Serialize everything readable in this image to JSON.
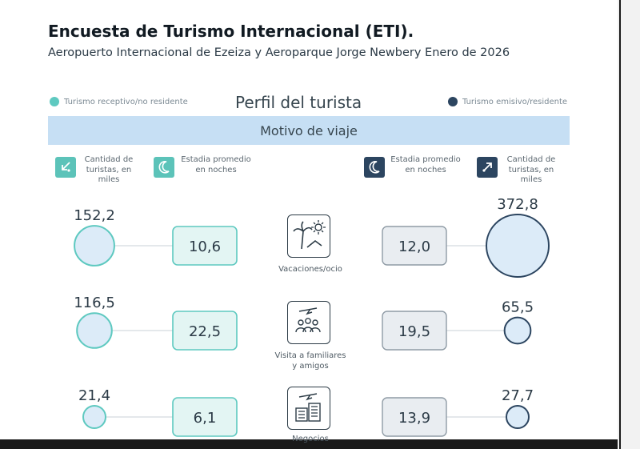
{
  "header": {
    "title": "Encuesta de Turismo Internacional (ETI).",
    "subtitle": "Aeropuerto Internacional de Ezeiza y Aeroparque Jorge Newbery Enero de 2026"
  },
  "legend": {
    "left": "Turismo receptivo/no residente",
    "right": "Turismo emisivo/residente"
  },
  "section_title": "Perfil del turista",
  "band_title": "Motivo de viaje",
  "column_headers": {
    "left_count": "Cantidad de turistas, en miles",
    "left_stay": "Estadia promedio en noches",
    "right_stay": "Estadia promedio en noches",
    "right_count": "Cantidad de turistas, en miles"
  },
  "colors": {
    "receptive": "#5ec9c0",
    "receptive_fill": "#dcebf8",
    "emissive": "#2c4560",
    "emissive_fill": "#dcebf8",
    "band": "#c6dff4"
  },
  "chart_data": {
    "type": "table",
    "categories": [
      "Vacaciones/ocio",
      "Visita a familiares y amigos",
      "Negocios"
    ],
    "category_labels": [
      [
        "Vacaciones/ocio"
      ],
      [
        "Visita a familiares",
        "y amigos"
      ],
      [
        "Negocios"
      ]
    ],
    "icons": [
      "palm-beach-icon",
      "family-plane-icon",
      "business-buildings-icon"
    ],
    "series": [
      {
        "name": "Turismo receptivo/no residente",
        "metric": "count_thousands",
        "values": [
          152.2,
          116.5,
          21.4
        ],
        "labels": [
          "152,2",
          "116,5",
          "21,4"
        ]
      },
      {
        "name": "Turismo receptivo/no residente",
        "metric": "avg_stay_nights",
        "values": [
          10.6,
          22.5,
          6.1
        ],
        "labels": [
          "10,6",
          "22,5",
          "6,1"
        ]
      },
      {
        "name": "Turismo emisivo/residente",
        "metric": "avg_stay_nights",
        "values": [
          12.0,
          19.5,
          13.9
        ],
        "labels": [
          "12,0",
          "19,5",
          "13,9"
        ]
      },
      {
        "name": "Turismo emisivo/residente",
        "metric": "count_thousands",
        "values": [
          372.8,
          65.5,
          27.7
        ],
        "labels": [
          "372,8",
          "65,5",
          "27,7"
        ]
      }
    ]
  }
}
